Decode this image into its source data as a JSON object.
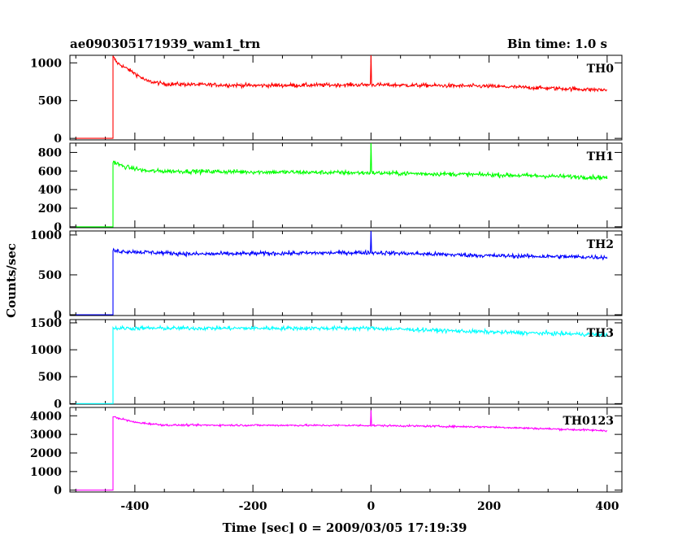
{
  "header": {
    "title": "ae090305171939_wam1_trn",
    "bin_time": "Bin time: 1.0 s"
  },
  "chart_data": {
    "type": "line",
    "xlabel": "Time [sec] 0 = 2009/03/05 17:19:39",
    "ylabel": "Counts/sec",
    "xlim": [
      -510,
      425
    ],
    "x_ticks": [
      -400,
      -200,
      0,
      200,
      400
    ],
    "x_ticks_labels": [
      "-400",
      "-200",
      "0",
      "200",
      "400"
    ],
    "x_range": [
      -500,
      400
    ],
    "trigger_time": -437,
    "panels": [
      {
        "name": "TH0",
        "color": "#ff0000",
        "ylim": [
          -20,
          1100
        ],
        "y_ticks": [
          0,
          500,
          1000
        ],
        "y_tick_labels": [
          "0",
          "500",
          "1000"
        ],
        "pre_level": 0,
        "trend": [
          [
            -437,
            1080
          ],
          [
            -430,
            1000
          ],
          [
            -400,
            860
          ],
          [
            -380,
            760
          ],
          [
            -350,
            720
          ],
          [
            -200,
            700
          ],
          [
            0,
            710
          ],
          [
            200,
            690
          ],
          [
            400,
            640
          ]
        ],
        "noise": 28,
        "spikes": [
          {
            "x": 0,
            "y": 1100
          }
        ]
      },
      {
        "name": "TH1",
        "color": "#00ff00",
        "ylim": [
          -10,
          900
        ],
        "y_ticks": [
          0,
          200,
          400,
          600,
          800
        ],
        "y_tick_labels": [
          "0",
          "200",
          "400",
          "600",
          "800"
        ],
        "pre_level": 0,
        "trend": [
          [
            -437,
            700
          ],
          [
            -420,
            650
          ],
          [
            -380,
            600
          ],
          [
            0,
            580
          ],
          [
            200,
            560
          ],
          [
            400,
            530
          ]
        ],
        "noise": 25,
        "spikes": [
          {
            "x": 0,
            "y": 900
          }
        ]
      },
      {
        "name": "TH2",
        "color": "#0000ff",
        "ylim": [
          -10,
          1050
        ],
        "y_ticks": [
          0,
          500,
          1000
        ],
        "y_tick_labels": [
          "0",
          "500",
          "1000"
        ],
        "pre_level": 0,
        "trend": [
          [
            -437,
            800
          ],
          [
            -300,
            760
          ],
          [
            0,
            780
          ],
          [
            200,
            740
          ],
          [
            400,
            720
          ]
        ],
        "noise": 28,
        "spikes": [
          {
            "x": 0,
            "y": 1050
          }
        ]
      },
      {
        "name": "TH3",
        "color": "#00ffff",
        "ylim": [
          -10,
          1560
        ],
        "y_ticks": [
          0,
          500,
          1000,
          1500
        ],
        "y_tick_labels": [
          "0",
          "500",
          "1000",
          "1500"
        ],
        "pre_level": 0,
        "trend": [
          [
            -437,
            1400
          ],
          [
            0,
            1400
          ],
          [
            200,
            1330
          ],
          [
            400,
            1280
          ]
        ],
        "noise": 40,
        "spikes": []
      },
      {
        "name": "TH0123",
        "color": "#ff00ff",
        "ylim": [
          -100,
          4450
        ],
        "y_ticks": [
          0,
          1000,
          2000,
          3000,
          4000
        ],
        "y_tick_labels": [
          "0",
          "1000",
          "2000",
          "3000",
          "4000"
        ],
        "pre_level": 0,
        "trend": [
          [
            -437,
            3950
          ],
          [
            -400,
            3650
          ],
          [
            -350,
            3500
          ],
          [
            0,
            3480
          ],
          [
            200,
            3400
          ],
          [
            400,
            3200
          ]
        ],
        "noise": 55,
        "spikes": [
          {
            "x": 0,
            "y": 4300
          }
        ]
      }
    ],
    "grid": false,
    "legend": "none"
  }
}
